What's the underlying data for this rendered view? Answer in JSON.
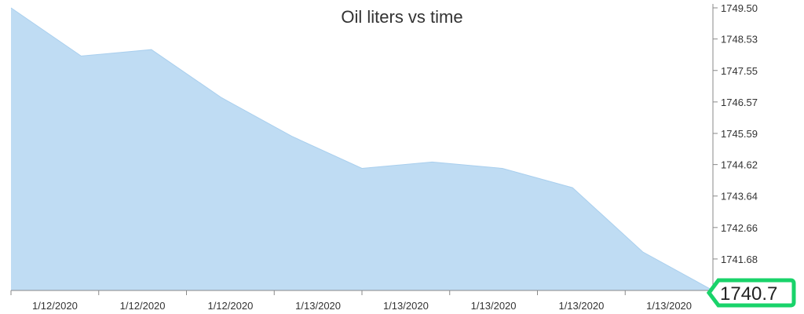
{
  "chart_data": {
    "type": "area",
    "title": "Oil liters vs time",
    "xlabel": "",
    "ylabel": "",
    "x_tick_labels": [
      "1/12/2020",
      "1/12/2020",
      "1/12/2020",
      "1/13/2020",
      "1/13/2020",
      "1/13/2020",
      "1/13/2020",
      "1/13/2020"
    ],
    "y_ticks": [
      "1749.50",
      "1748.53",
      "1747.55",
      "1746.57",
      "1745.59",
      "1744.62",
      "1743.64",
      "1742.66",
      "1741.68"
    ],
    "ylim": [
      1740.7,
      1749.5
    ],
    "y_axis_position": "right",
    "grid": false,
    "series": [
      {
        "values": [
          1749.5,
          1748.0,
          1748.2,
          1746.7,
          1745.5,
          1744.5,
          1744.7,
          1744.5,
          1743.9,
          1741.9,
          1740.7
        ]
      }
    ],
    "current_value_label": "1740.7",
    "colors": {
      "fill": "#bfdcf3",
      "stroke": "#a9cfee",
      "axis": "#888888",
      "badge": "#19d36a"
    }
  }
}
